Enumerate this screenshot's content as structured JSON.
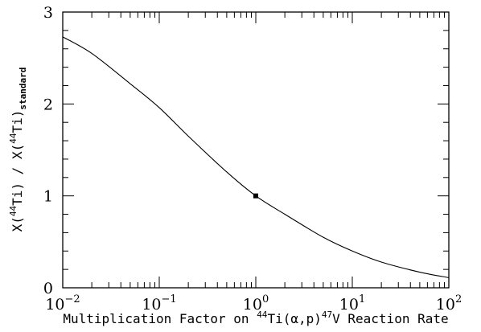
{
  "chart_data": {
    "type": "line",
    "title": "",
    "xscale": "log",
    "xlim": [
      0.01,
      100
    ],
    "ylim": [
      0,
      3
    ],
    "grid": false,
    "x_ticks": [
      {
        "base": "10",
        "exp": "−2",
        "value": 0.01
      },
      {
        "base": "10",
        "exp": "−1",
        "value": 0.1
      },
      {
        "base": "10",
        "exp": "0",
        "value": 1
      },
      {
        "base": "10",
        "exp": "1",
        "value": 10
      },
      {
        "base": "10",
        "exp": "2",
        "value": 100
      }
    ],
    "y_ticks": [
      {
        "label": "0",
        "value": 0
      },
      {
        "label": "1",
        "value": 1
      },
      {
        "label": "2",
        "value": 2
      },
      {
        "label": "3",
        "value": 3
      }
    ],
    "xlabel": {
      "part1": "Multiplication Factor on ",
      "sup1": "44",
      "part2": "Ti(α,p)",
      "sup2": "47",
      "part3": "V Reaction Rate"
    },
    "ylabel": {
      "part1": "X(",
      "sup1": "44",
      "part2": "Ti)  /  X(",
      "sup2": "44",
      "part3": "Ti)",
      "sub": "standard"
    },
    "series": [
      {
        "x": [
          0.01,
          0.02,
          0.05,
          0.1,
          0.2,
          0.5,
          1,
          2,
          5,
          10,
          20,
          50,
          100
        ],
        "y": [
          2.73,
          2.55,
          2.22,
          1.96,
          1.65,
          1.26,
          1.0,
          0.8,
          0.55,
          0.4,
          0.28,
          0.17,
          0.11
        ]
      }
    ],
    "markers": [
      {
        "x": 1,
        "y": 1,
        "shape": "square"
      }
    ]
  }
}
